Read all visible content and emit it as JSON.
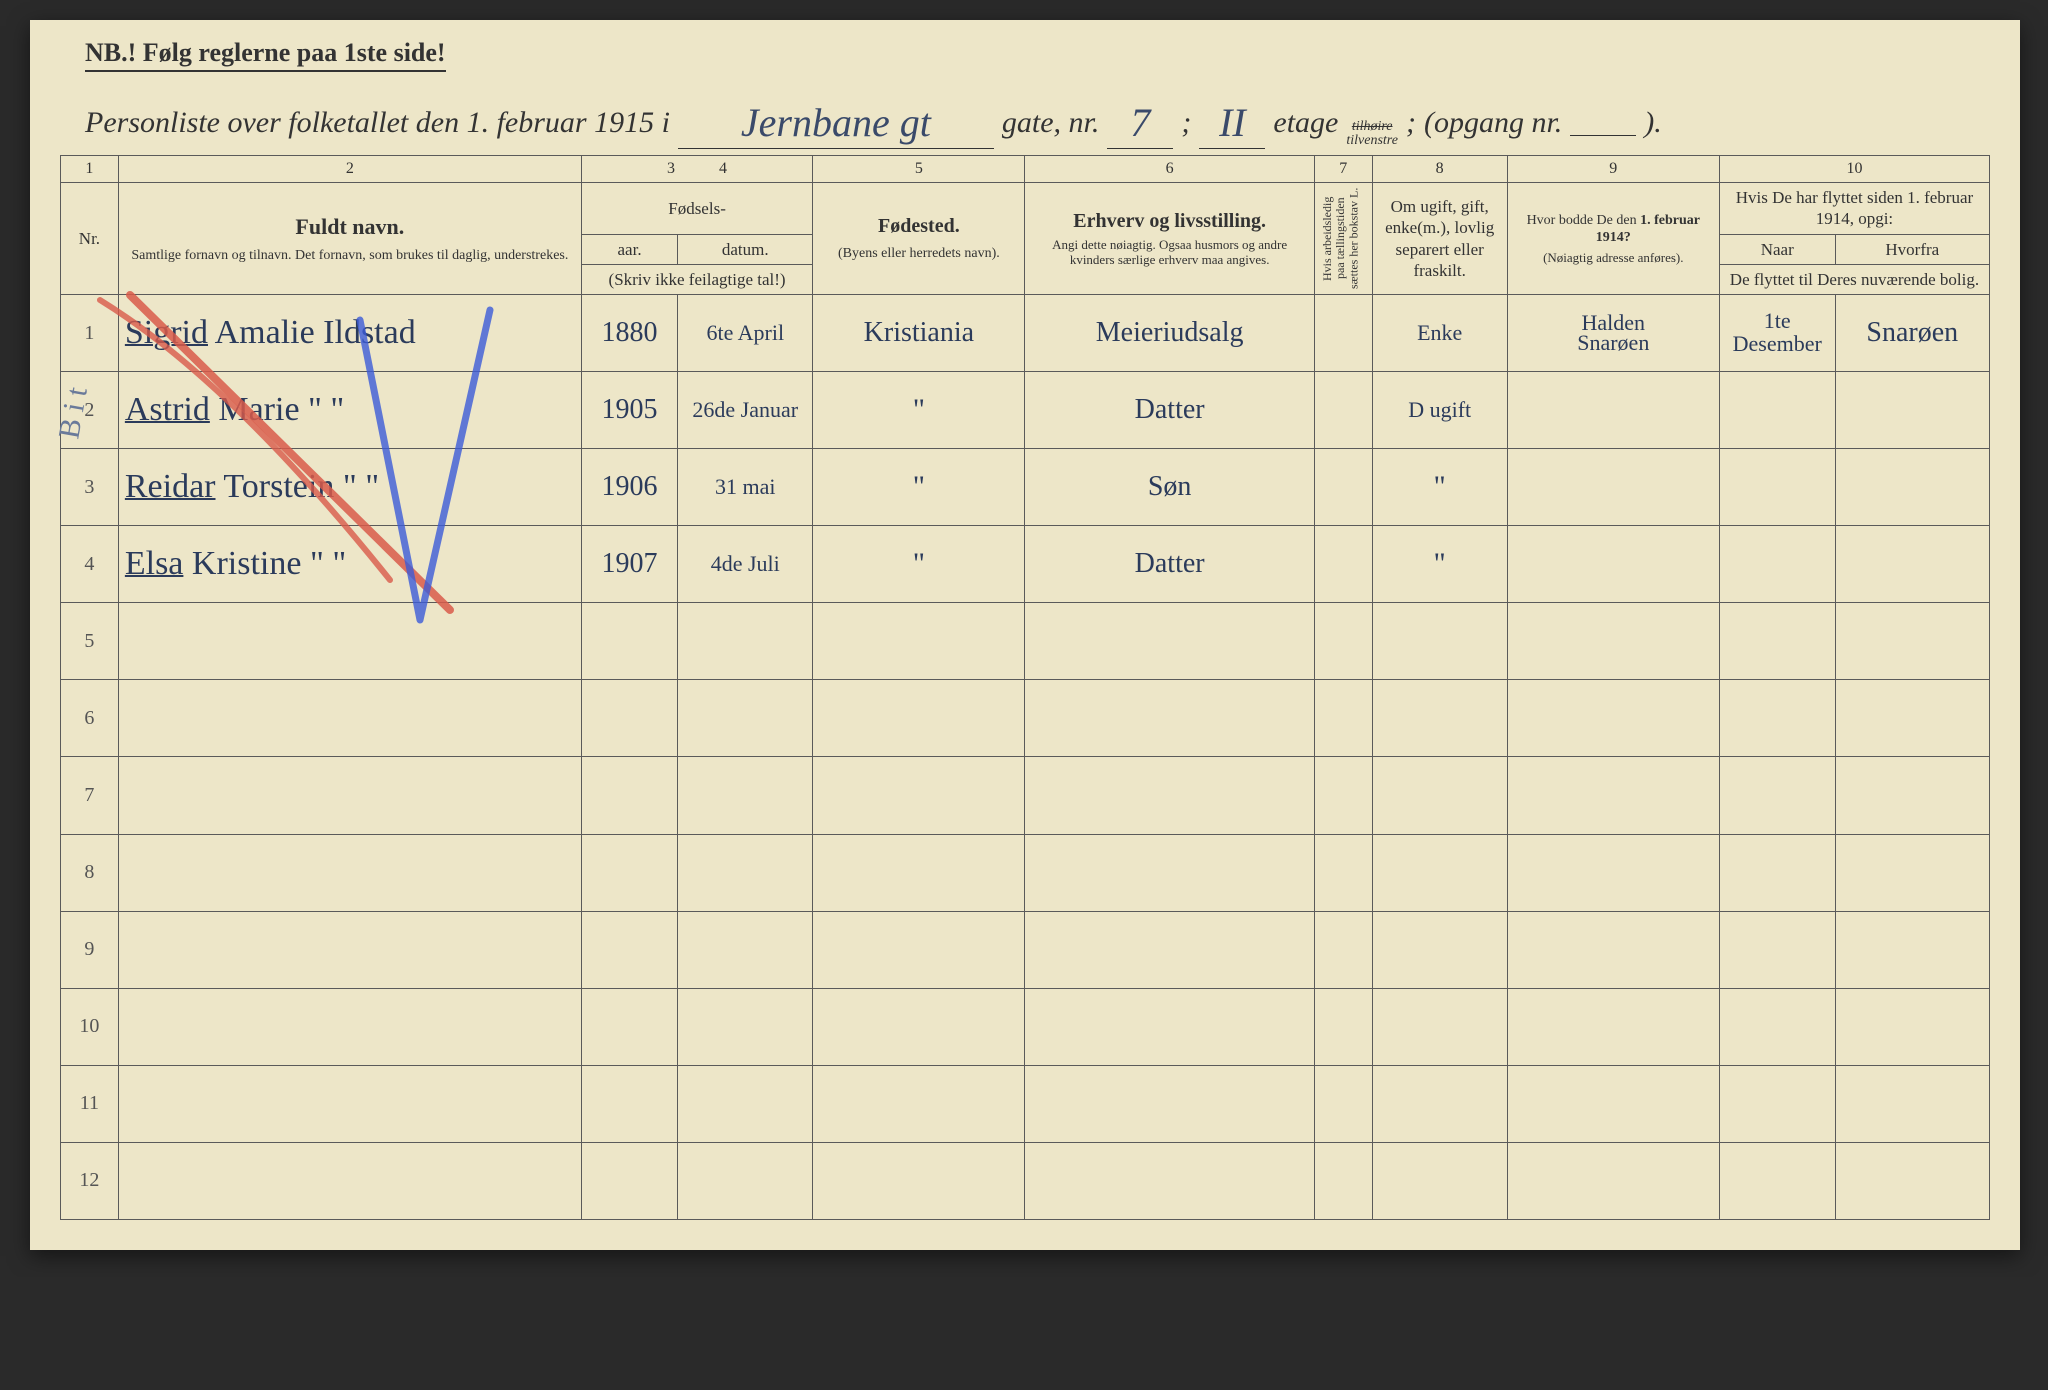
{
  "colors": {
    "paper": "#ede6c8",
    "ink_print": "#333333",
    "ink_hand": "#2b3b5b",
    "rule": "#5a5a5a",
    "red_mark": "#d85a4a",
    "blue_mark": "#3b5bd8"
  },
  "nb": "NB.!  Følg reglerne paa 1ste side!",
  "header": {
    "prefix": "Personliste over folketallet den 1. februar 1915 i",
    "street": "Jernbane gt",
    "gate_label": "gate, nr.",
    "gate_nr": "7",
    "semicolon1": ";",
    "floor_nr": "II",
    "etage_label": "etage",
    "tilhoire": "tilhøire",
    "tilvenstre": "tilvenstre",
    "semicolon2": ";",
    "opgang_label": "(opgang nr.",
    "opgang_nr": "",
    "close": ")."
  },
  "columns": {
    "n1": "1",
    "n2": "2",
    "n3": "3",
    "n4": "4",
    "n5": "5",
    "n6": "6",
    "n7": "7",
    "n8": "8",
    "n9": "9",
    "n10": "10",
    "nr": "Nr.",
    "name_b": "Fuldt navn.",
    "name_sub": "Samtlige fornavn og tilnavn.  Det fornavn, som brukes til daglig, understrekes.",
    "fodsels": "Fødsels-",
    "aar": "aar.",
    "datum": "datum.",
    "fodsels_note": "(Skriv ikke feilagtige tal!)",
    "fodested": "Fødested.",
    "fodested_sub": "(Byens eller herredets navn).",
    "erhverv": "Erhverv og livsstilling.",
    "erhverv_sub": "Angi dette nøiagtig. Ogsaa husmors og andre kvinders særlige erhverv maa angives.",
    "col7": "Hvis arbeidsledig paa tællingstiden sættes her bokstav L.",
    "col8": "Om ugift, gift, enke(m.), lovlig separert eller fraskilt.",
    "col9_b": "Hvor bodde De den 1. februar 1914?",
    "col9_sub": "(Nøiagtig adresse anføres).",
    "col10_top": "Hvis De har flyttet siden 1. februar 1914, opgi:",
    "col10_naar": "Naar",
    "col10_hvorfra": "Hvorfra",
    "col10_bot": "De flyttet til Deres nuværende bolig."
  },
  "rows": [
    {
      "nr": "1",
      "first": "Sigrid",
      "rest": "Amalie Ildstad",
      "year": "1880",
      "date": "6te April",
      "born": "Kristiania",
      "occ": "Meieriudsalg",
      "l": "",
      "civ": "Enke",
      "addr1914_a": "Halden",
      "addr1914_b": "Snarøen",
      "when": "1te Desember",
      "from": "Snarøen"
    },
    {
      "nr": "2",
      "first": "Astrid",
      "rest": "Marie    \"   \"",
      "year": "1905",
      "date": "26de Januar",
      "born": "\"",
      "occ": "Datter",
      "l": "",
      "civ": "D ugift",
      "addr1914_a": "",
      "addr1914_b": "",
      "when": "",
      "from": ""
    },
    {
      "nr": "3",
      "first": "Reidar",
      "rest": "Torstein  \"   \"",
      "year": "1906",
      "date": "31 mai",
      "born": "\"",
      "occ": "Søn",
      "l": "",
      "civ": "\"",
      "addr1914_a": "",
      "addr1914_b": "",
      "when": "",
      "from": ""
    },
    {
      "nr": "4",
      "first": "Elsa",
      "rest": "Kristine   \"   \"",
      "year": "1907",
      "date": "4de Juli",
      "born": "\"",
      "occ": "Datter",
      "l": "",
      "civ": "\"",
      "addr1914_a": "",
      "addr1914_b": "",
      "when": "",
      "from": ""
    },
    {
      "nr": "5"
    },
    {
      "nr": "6"
    },
    {
      "nr": "7"
    },
    {
      "nr": "8"
    },
    {
      "nr": "9"
    },
    {
      "nr": "10"
    },
    {
      "nr": "11"
    },
    {
      "nr": "12"
    }
  ],
  "side_note": "B i t",
  "col_widths_pct": [
    3,
    24,
    5,
    7,
    11,
    15,
    3,
    7,
    11,
    6,
    8
  ]
}
